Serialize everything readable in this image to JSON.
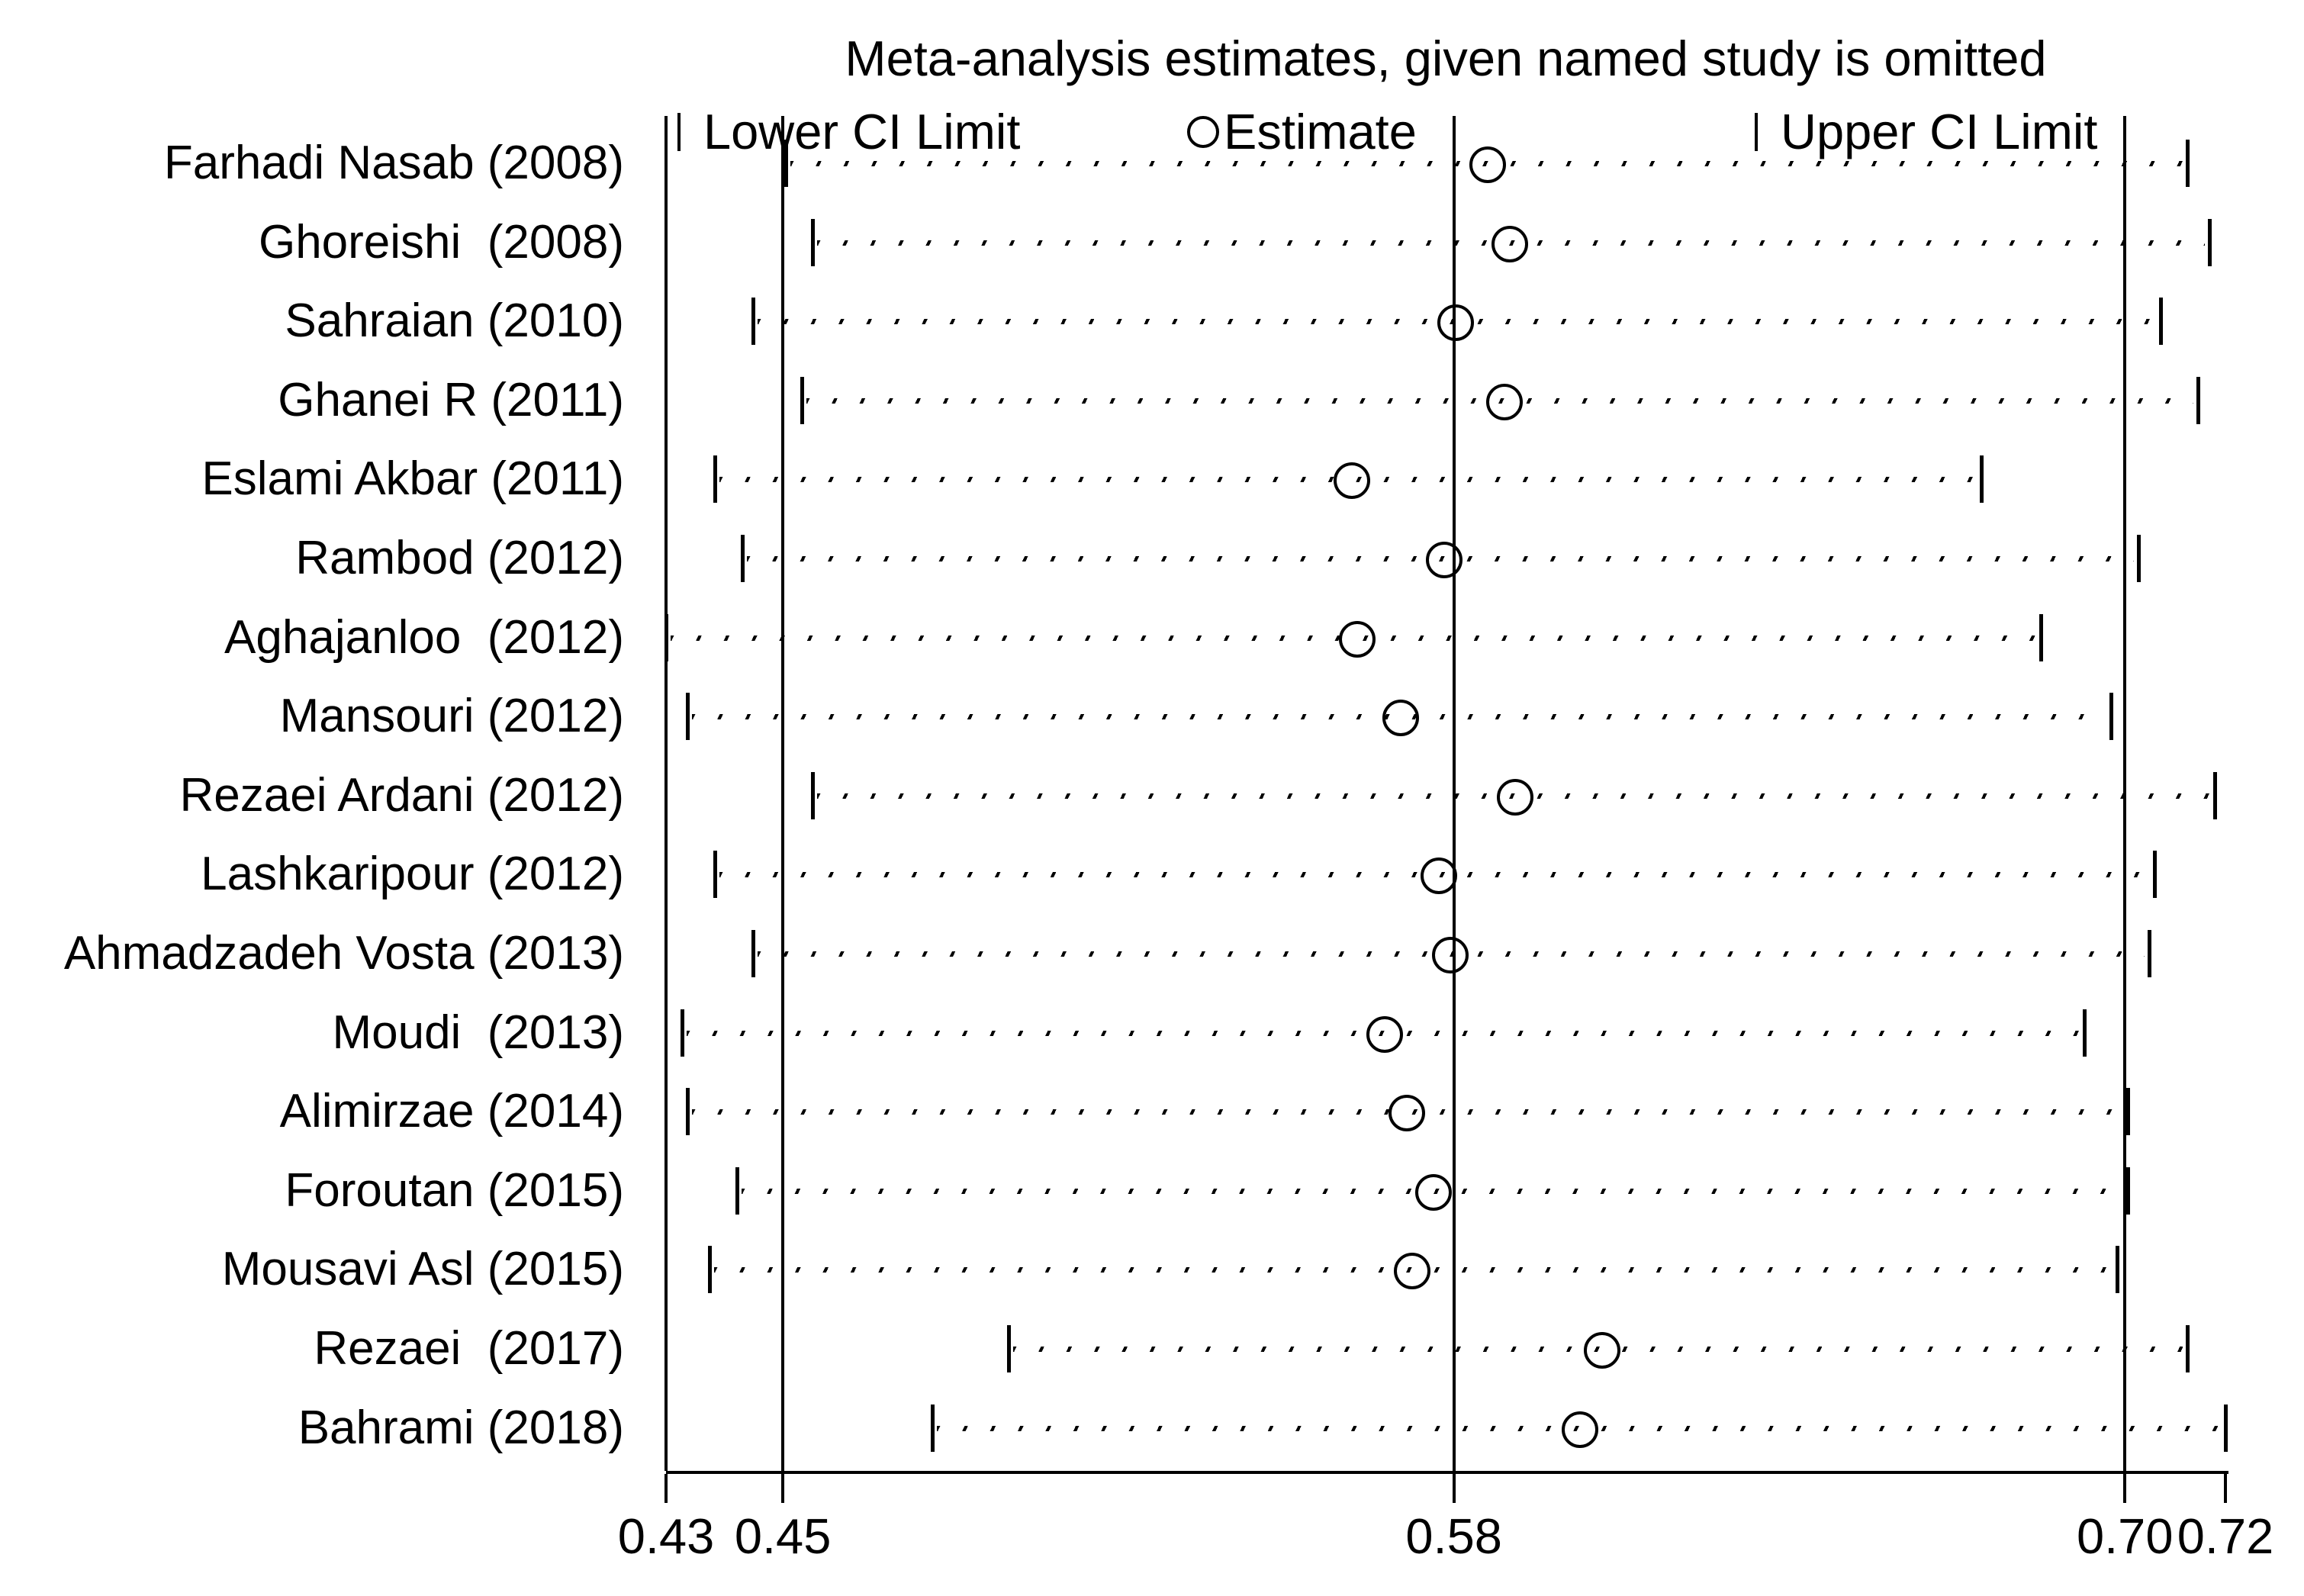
{
  "title": "Meta-analysis estimates, given named study is omitted",
  "legend": {
    "lower_label": "Lower CI Limit",
    "estimate_label": "Estimate",
    "upper_label": "Upper CI Limit"
  },
  "chart_data": {
    "type": "scatter",
    "subtype": "leave-one-out-sensitivity-forest-plot",
    "title": "Meta-analysis estimates, given named study is omitted",
    "xlabel": "",
    "ylabel": "",
    "xlim": [
      0.432,
      0.719
    ],
    "grid": false,
    "legend_position": "top",
    "x_ticks": [
      {
        "value": 0.432,
        "label": "0.43"
      },
      {
        "value": 0.4535,
        "label": "0.45"
      },
      {
        "value": 0.577,
        "label": "0.58"
      },
      {
        "value": 0.7005,
        "label": "0.70"
      },
      {
        "value": 0.719,
        "label": "0.72"
      }
    ],
    "ref_line_values": [
      0.432,
      0.4535,
      0.577,
      0.7005
    ],
    "overall": {
      "lower": 0.45,
      "estimate": 0.58,
      "upper": 0.7
    },
    "marker_color": "#000000",
    "studies": [
      {
        "label": "Farhadi Nasab (2008)",
        "lower": 0.454,
        "estimate": 0.583,
        "upper": 0.712
      },
      {
        "label": "Ghoreishi  (2008)",
        "lower": 0.459,
        "estimate": 0.587,
        "upper": 0.716
      },
      {
        "label": "Sahraian (2010)",
        "lower": 0.448,
        "estimate": 0.577,
        "upper": 0.707
      },
      {
        "label": "Ghanei R (2011)",
        "lower": 0.457,
        "estimate": 0.586,
        "upper": 0.714
      },
      {
        "label": "Eslami Akbar (2011)",
        "lower": 0.441,
        "estimate": 0.558,
        "upper": 0.674
      },
      {
        "label": "Rambod (2012)",
        "lower": 0.446,
        "estimate": 0.575,
        "upper": 0.703
      },
      {
        "label": "Aghajanloo  (2012)",
        "lower": 0.432,
        "estimate": 0.559,
        "upper": 0.685
      },
      {
        "label": "Mansouri (2012)",
        "lower": 0.436,
        "estimate": 0.567,
        "upper": 0.698
      },
      {
        "label": "Rezaei Ardani (2012)",
        "lower": 0.459,
        "estimate": 0.588,
        "upper": 0.717
      },
      {
        "label": "Lashkaripour (2012)",
        "lower": 0.441,
        "estimate": 0.574,
        "upper": 0.706
      },
      {
        "label": "Ahmadzadeh Vosta (2013)",
        "lower": 0.448,
        "estimate": 0.576,
        "upper": 0.705
      },
      {
        "label": "Moudi  (2013)",
        "lower": 0.435,
        "estimate": 0.564,
        "upper": 0.693
      },
      {
        "label": "Alimirzae (2014)",
        "lower": 0.436,
        "estimate": 0.568,
        "upper": 0.701
      },
      {
        "label": "Foroutan (2015)",
        "lower": 0.445,
        "estimate": 0.573,
        "upper": 0.701
      },
      {
        "label": "Mousavi Asl (2015)",
        "lower": 0.44,
        "estimate": 0.569,
        "upper": 0.699
      },
      {
        "label": "Rezaei  (2017)",
        "lower": 0.495,
        "estimate": 0.604,
        "upper": 0.712
      },
      {
        "label": "Bahrami (2018)",
        "lower": 0.481,
        "estimate": 0.6,
        "upper": 0.719
      }
    ]
  }
}
